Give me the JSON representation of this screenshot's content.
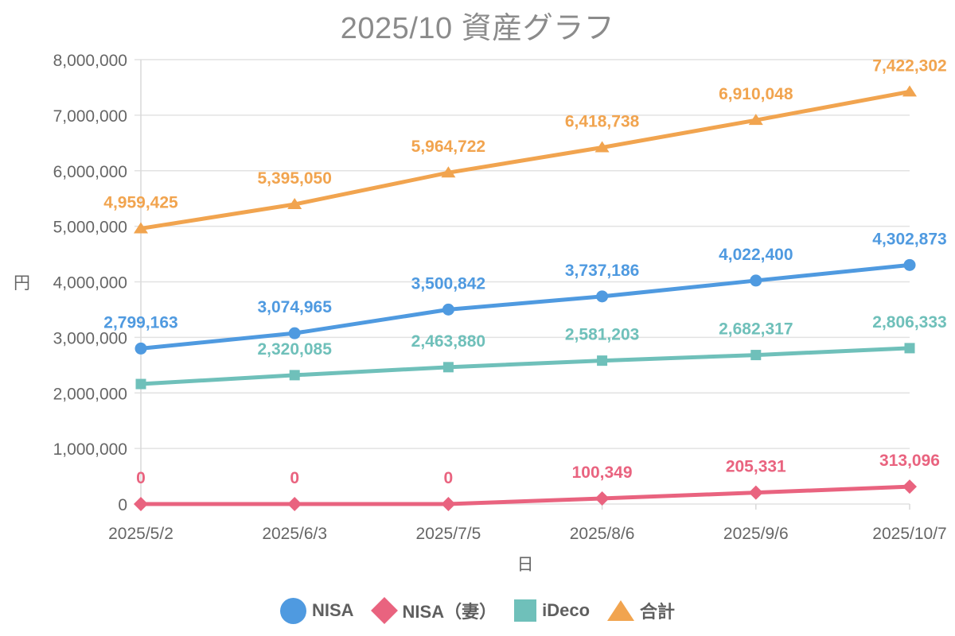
{
  "title": "2025/10 資産グラフ",
  "colors": {
    "title_text": "#8b8b8b",
    "axis_text": "#666666",
    "grid_line": "#e2e2e2",
    "axis_line": "#d9d9d9",
    "legend_text": "#5f5f5f"
  },
  "chart_data": {
    "type": "line",
    "title": "2025/10 資産グラフ",
    "xlabel": "日",
    "ylabel": "円",
    "categories": [
      "2025/5/2",
      "2025/6/3",
      "2025/7/5",
      "2025/8/6",
      "2025/9/6",
      "2025/10/7"
    ],
    "ylim": [
      0,
      8000000
    ],
    "y_tick_step": 1000000,
    "grid": true,
    "legend_position": "bottom",
    "series": [
      {
        "name": "NISA",
        "color": "#4f9ae0",
        "marker": "circle",
        "values": [
          2799163,
          3074965,
          3500842,
          3737186,
          4022400,
          4302873
        ],
        "labels": [
          "2,799,163",
          "3,074,965",
          "3,500,842",
          "3,737,186",
          "4,022,400",
          "4,302,873"
        ]
      },
      {
        "name": "NISA（妻）",
        "color": "#e9637f",
        "marker": "diamond",
        "values": [
          0,
          0,
          0,
          100349,
          205331,
          313096
        ],
        "labels": [
          "0",
          "0",
          "0",
          "100,349",
          "205,331",
          "313,096"
        ]
      },
      {
        "name": "iDeco",
        "color": "#6fc0ba",
        "marker": "square",
        "values": [
          2160262,
          2320085,
          2463880,
          2581203,
          2682317,
          2806333
        ],
        "labels": [
          "",
          "2,320,085",
          "2,463,880",
          "2,581,203",
          "2,682,317",
          "2,806,333"
        ]
      },
      {
        "name": "合計",
        "color": "#f1a44f",
        "marker": "triangle",
        "values": [
          4959425,
          5395050,
          5964722,
          6418738,
          6910048,
          7422302
        ],
        "labels": [
          "4,959,425",
          "5,395,050",
          "5,964,722",
          "6,418,738",
          "6,910,048",
          "7,422,302"
        ]
      }
    ]
  }
}
